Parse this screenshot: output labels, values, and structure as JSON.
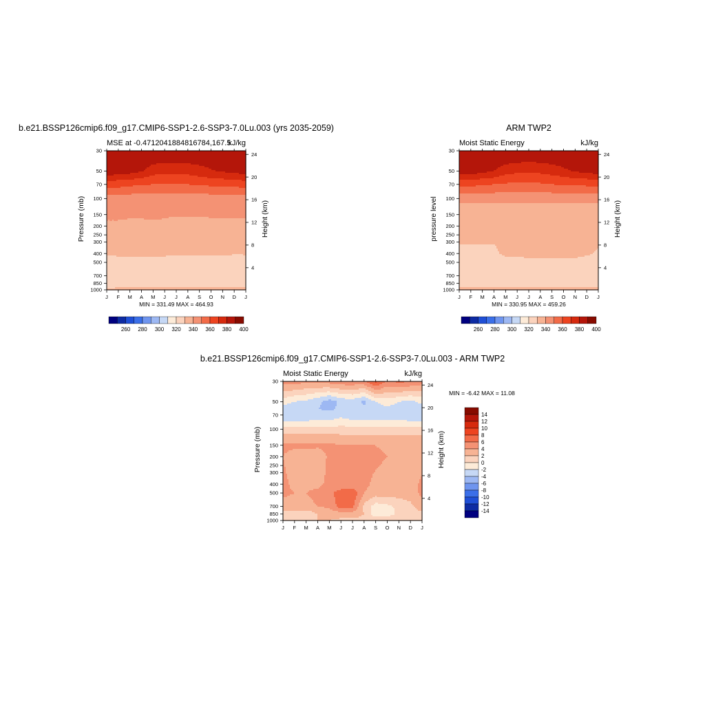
{
  "chart_data": [
    {
      "type": "heatmap",
      "title": "b.e21.BSSP126cmip6.f09_g17.CMIP6-SSP1-2.6-SSP3-7.0Lu.003 (yrs 2035-2059)",
      "subtitle_left": "MSE at -0.4712041884816784,167.5",
      "subtitle_right": "kJ/kg",
      "ylabel": "Pressure (mb)",
      "ylabel_right": "Height (km)",
      "x_ticks": [
        "J",
        "F",
        "M",
        "A",
        "M",
        "J",
        "J",
        "A",
        "S",
        "O",
        "N",
        "D",
        "J"
      ],
      "y_ticks": [
        30,
        50,
        70,
        100,
        150,
        200,
        250,
        300,
        400,
        500,
        700,
        850,
        1000
      ],
      "y2_ticks": [
        4,
        8,
        12,
        16,
        20,
        24
      ],
      "stats": "MIN = 331.49 MAX = 464.93",
      "colorbar_labels": [
        260,
        280,
        300,
        320,
        340,
        360,
        380,
        400
      ],
      "levels": [
        250,
        260,
        270,
        280,
        290,
        300,
        310,
        320,
        330,
        340,
        350,
        360,
        370,
        380,
        390,
        400
      ],
      "colors": [
        "#00007f",
        "#0d2ba3",
        "#1f4fd6",
        "#3b6fe8",
        "#6f95ef",
        "#9db8f3",
        "#c6d8f5",
        "#fdebd8",
        "#fbd3bd",
        "#f7b394",
        "#f49274",
        "#f26b48",
        "#ed4420",
        "#d62a0e",
        "#b4160a",
        "#870b00"
      ],
      "x": [
        1,
        2,
        3,
        4,
        5,
        6,
        7,
        8,
        9,
        10,
        11,
        12,
        13
      ],
      "p": [
        30,
        50,
        60,
        70,
        85,
        100,
        150,
        200,
        400,
        500,
        700,
        850,
        1000
      ],
      "z": [
        [
          400,
          400,
          400,
          400,
          400,
          400,
          400,
          400,
          400,
          400,
          400,
          400,
          400
        ],
        [
          398,
          397,
          394,
          391,
          385,
          383,
          383,
          384,
          386,
          389,
          391,
          393,
          395
        ],
        [
          384,
          383,
          382,
          380,
          376,
          375,
          375,
          376,
          378,
          380,
          381,
          382,
          384
        ],
        [
          375,
          374,
          372,
          371,
          370,
          370,
          370,
          370,
          371,
          372,
          372,
          373,
          374
        ],
        [
          365,
          364,
          363,
          362,
          361,
          361,
          361,
          361,
          362,
          363,
          363,
          364,
          365
        ],
        [
          355,
          355,
          354,
          354,
          354,
          354,
          353,
          353,
          354,
          354,
          355,
          355,
          355
        ],
        [
          352,
          352,
          351,
          351,
          352,
          351,
          351,
          351,
          351,
          352,
          352,
          352,
          352
        ],
        [
          348,
          348,
          348,
          348,
          348,
          348,
          345,
          345,
          345,
          345,
          346,
          346,
          346
        ],
        [
          341,
          341,
          341,
          341,
          341,
          341,
          341,
          342,
          342,
          342,
          342,
          341,
          341
        ],
        [
          335,
          338,
          338,
          338,
          338,
          338,
          335,
          332,
          332,
          332,
          332,
          333,
          334
        ],
        [
          335,
          334,
          332,
          330,
          332,
          332,
          330,
          333,
          333,
          332,
          332,
          332,
          333
        ],
        [
          335,
          336,
          337,
          337,
          337,
          338,
          338,
          338,
          338,
          338,
          337,
          337,
          336
        ],
        [
          342,
          342,
          342,
          342,
          342,
          342,
          342,
          342,
          342,
          342,
          342,
          342,
          342
        ]
      ]
    },
    {
      "type": "heatmap",
      "title": "ARM TWP2",
      "subtitle_left": "Moist Static Energy",
      "subtitle_right": "kJ/kg",
      "ylabel": "pressure level",
      "ylabel_right": "Height (km)",
      "x_ticks": [
        "J",
        "F",
        "M",
        "A",
        "M",
        "J",
        "J",
        "A",
        "S",
        "O",
        "N",
        "D",
        "J"
      ],
      "y_ticks": [
        30,
        50,
        70,
        100,
        150,
        200,
        250,
        300,
        400,
        500,
        700,
        850,
        1000
      ],
      "y2_ticks": [
        4,
        8,
        12,
        16,
        20,
        24
      ],
      "stats": "MIN = 330.95 MAX = 459.26",
      "colorbar_labels": [
        260,
        280,
        300,
        320,
        340,
        360,
        380,
        400
      ],
      "levels": [
        250,
        260,
        270,
        280,
        290,
        300,
        310,
        320,
        330,
        340,
        350,
        360,
        370,
        380,
        390,
        400
      ],
      "colors": [
        "#00007f",
        "#0d2ba3",
        "#1f4fd6",
        "#3b6fe8",
        "#6f95ef",
        "#9db8f3",
        "#c6d8f5",
        "#fdebd8",
        "#fbd3bd",
        "#f7b394",
        "#f49274",
        "#f26b48",
        "#ed4420",
        "#d62a0e",
        "#b4160a",
        "#870b00"
      ],
      "x": [
        1,
        2,
        3,
        4,
        5,
        6,
        7,
        8,
        9,
        10,
        11,
        12,
        13
      ],
      "p": [
        30,
        50,
        60,
        70,
        85,
        100,
        150,
        200,
        400,
        500,
        700,
        850,
        1000
      ],
      "z": [
        [
          400,
          400,
          400,
          400,
          400,
          400,
          400,
          400,
          400,
          400,
          400,
          400,
          400
        ],
        [
          397,
          396,
          393,
          390,
          385,
          383,
          382,
          383,
          385,
          388,
          391,
          393,
          395
        ],
        [
          383,
          382,
          381,
          379,
          375,
          373,
          373,
          374,
          376,
          378,
          380,
          381,
          383
        ],
        [
          374,
          373,
          371,
          370,
          369,
          368,
          368,
          369,
          370,
          371,
          371,
          372,
          373
        ],
        [
          363,
          362,
          361,
          361,
          360,
          360,
          360,
          360,
          361,
          361,
          362,
          362,
          363
        ],
        [
          352,
          352,
          352,
          352,
          352,
          352,
          352,
          352,
          352,
          352,
          352,
          352,
          352
        ],
        [
          345,
          345,
          345,
          345,
          345,
          345,
          345,
          345,
          345,
          345,
          345,
          345,
          345
        ],
        [
          344,
          344,
          344,
          344,
          344,
          344,
          344,
          344,
          344,
          344,
          344,
          344,
          344
        ],
        [
          338,
          338,
          338,
          338,
          342,
          342,
          342,
          343,
          343,
          343,
          342,
          341,
          339
        ],
        [
          336,
          336,
          336,
          336,
          336,
          337,
          338,
          338,
          338,
          338,
          338,
          337,
          336
        ],
        [
          334,
          334,
          334,
          334,
          334,
          334,
          334,
          334,
          334,
          334,
          334,
          334,
          334
        ],
        [
          336,
          336,
          336,
          336,
          336,
          337,
          337,
          337,
          337,
          337,
          337,
          337,
          336
        ],
        [
          342,
          342,
          342,
          342,
          342,
          342,
          342,
          342,
          342,
          342,
          342,
          342,
          342
        ]
      ]
    },
    {
      "type": "heatmap",
      "title": "b.e21.BSSP126cmip6.f09_g17.CMIP6-SSP1-2.6-SSP3-7.0Lu.003 - ARM TWP2",
      "subtitle_left": "Moist Static Energy",
      "subtitle_right": "kJ/kg",
      "ylabel": "Pressure (mb)",
      "ylabel_right": "Height (km)",
      "x_ticks": [
        "J",
        "F",
        "M",
        "A",
        "M",
        "J",
        "J",
        "A",
        "S",
        "O",
        "N",
        "D",
        "J"
      ],
      "y_ticks": [
        30,
        50,
        70,
        100,
        150,
        200,
        250,
        300,
        400,
        500,
        700,
        850,
        1000
      ],
      "y2_ticks": [
        4,
        8,
        12,
        16,
        20,
        24
      ],
      "stats": "MIN =  -6.42 MAX =  11.08",
      "colorbar_labels": [
        14,
        12,
        10,
        8,
        6,
        4,
        2,
        0,
        -2,
        -4,
        -6,
        -8,
        -10,
        -12,
        -14
      ],
      "levels": [
        -15,
        -14,
        -12,
        -10,
        -8,
        -6,
        -4,
        -2,
        0,
        2,
        4,
        6,
        8,
        10,
        12,
        14
      ],
      "colors": [
        "#00007f",
        "#0d2ba3",
        "#1f4fd6",
        "#3b6fe8",
        "#6f95ef",
        "#9db8f3",
        "#c6d8f5",
        "#fdebd8",
        "#fbd3bd",
        "#f7b394",
        "#f49274",
        "#f26b48",
        "#ed4420",
        "#d62a0e",
        "#b4160a",
        "#870b00"
      ],
      "x": [
        1,
        2,
        3,
        4,
        5,
        6,
        7,
        8,
        9,
        10,
        11,
        12,
        13
      ],
      "p": [
        30,
        50,
        60,
        70,
        85,
        100,
        150,
        200,
        400,
        500,
        700,
        850,
        1000
      ],
      "z": [
        [
          5,
          5,
          4.5,
          4.5,
          5,
          5.5,
          5.5,
          5.5,
          8.5,
          5.5,
          6.5,
          6,
          5
        ],
        [
          -1,
          -2,
          -2.5,
          -3.5,
          -5,
          -3.5,
          -3,
          -4.5,
          -2,
          -1,
          -2,
          -2.5,
          -1.5
        ],
        [
          -3,
          -3.5,
          -4,
          -4,
          -4.5,
          -3.5,
          -3,
          -3.5,
          -3,
          -2.5,
          -3,
          -3,
          -3
        ],
        [
          -3.5,
          -3.5,
          -3.5,
          -3,
          -3,
          -2.5,
          -3,
          -3,
          -3,
          -3,
          -3,
          -3.5,
          -3.5
        ],
        [
          -1.5,
          -1.5,
          -1.5,
          -1.5,
          -1.5,
          -1,
          -1.5,
          -1.5,
          -1.5,
          -1.5,
          -1.5,
          -1.5,
          -1.5
        ],
        [
          1,
          1,
          1,
          1,
          1,
          1,
          1,
          1,
          1,
          1,
          1,
          1,
          1
        ],
        [
          4.5,
          4.5,
          4.5,
          4.5,
          4.5,
          4,
          4,
          4,
          4,
          3.5,
          3.5,
          3.5,
          3.5
        ],
        [
          4,
          3,
          3,
          2.5,
          4.5,
          4.5,
          4.5,
          4.5,
          4.5,
          4,
          3,
          3,
          3
        ],
        [
          4.5,
          3.5,
          3.5,
          3.5,
          4.5,
          4.5,
          4.5,
          4.5,
          3.5,
          3,
          3,
          3,
          4.5
        ],
        [
          4.5,
          4,
          4,
          4.5,
          5.5,
          7,
          7.5,
          4,
          3,
          3,
          3,
          3,
          4.5
        ],
        [
          3,
          3,
          3.5,
          4,
          4.5,
          7,
          6.5,
          1.5,
          -1,
          -0.5,
          0.5,
          1.5,
          3
        ],
        [
          1.5,
          1,
          0.5,
          2,
          2.5,
          3,
          3,
          2,
          -1.5,
          -1,
          0.5,
          1.5,
          1.5
        ],
        [
          2,
          1,
          2,
          2,
          2,
          1.5,
          1.5,
          1.5,
          2,
          2,
          2,
          2,
          2
        ]
      ]
    }
  ]
}
